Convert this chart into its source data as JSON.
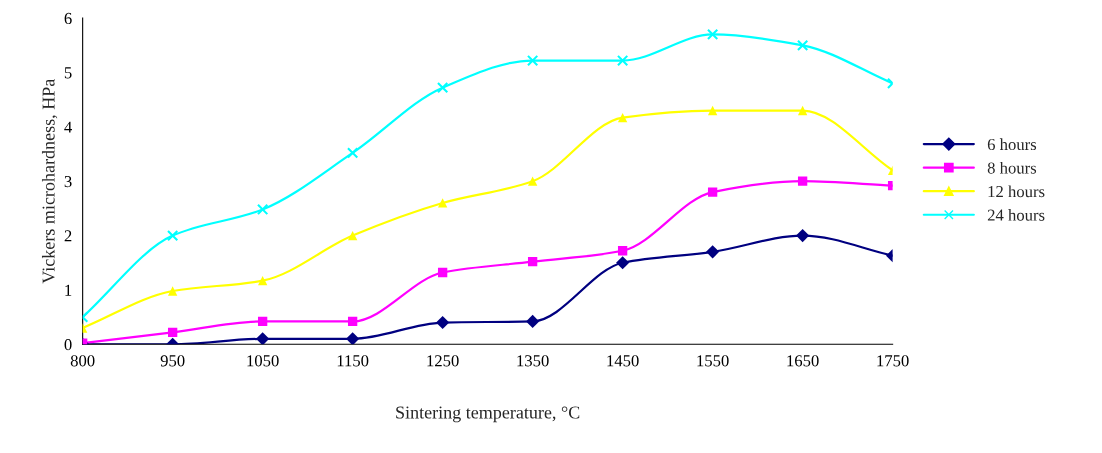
{
  "chart_data": {
    "type": "line",
    "xlabel": "Sintering temperature, °C",
    "ylabel": "Vickers microhardness, HPa",
    "categories": [
      "800",
      "950",
      "1050",
      "1150",
      "1250",
      "1350",
      "1450",
      "1550",
      "1650",
      "1750"
    ],
    "ylim": [
      0,
      6
    ],
    "yticks": [
      0,
      1,
      2,
      3,
      4,
      5,
      6
    ],
    "grid": false,
    "legend": "right",
    "line_style": "solid",
    "series": [
      {
        "name": "6 hours",
        "color": "#000080",
        "marker": "diamond",
        "values": [
          0,
          0,
          0.1,
          0.1,
          0.4,
          0.42,
          1.5,
          1.7,
          2.0,
          1.63
        ]
      },
      {
        "name": "8 hours",
        "color": "#ff00ff",
        "marker": "square",
        "values": [
          0.02,
          0.22,
          0.42,
          0.42,
          1.32,
          1.52,
          1.72,
          2.8,
          3.0,
          2.92
        ]
      },
      {
        "name": "12 hours",
        "color": "#ffff00",
        "marker": "triangle",
        "values": [
          0.3,
          0.98,
          1.17,
          2.0,
          2.6,
          3.0,
          4.17,
          4.3,
          4.3,
          3.2
        ]
      },
      {
        "name": "24 hours",
        "color": "#00ffff",
        "marker": "cross",
        "values": [
          0.5,
          2.0,
          2.48,
          3.52,
          4.72,
          5.22,
          5.22,
          5.7,
          5.5,
          4.8
        ]
      }
    ]
  }
}
